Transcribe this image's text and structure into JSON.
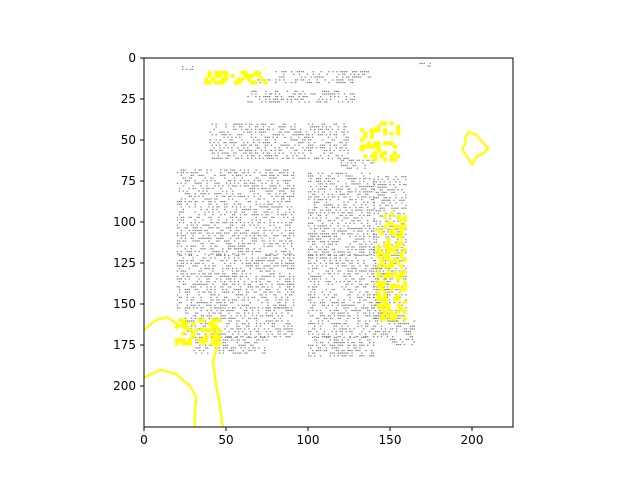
{
  "chart_data": {
    "type": "heatmap",
    "title": "",
    "xlabel": "",
    "ylabel": "",
    "xlim": [
      0,
      225
    ],
    "ylim": [
      225,
      0
    ],
    "y_inverted": true,
    "grid": false,
    "legend": "none",
    "x_ticks": [
      0,
      50,
      100,
      150,
      200
    ],
    "y_ticks": [
      0,
      25,
      50,
      75,
      100,
      125,
      150,
      175,
      200
    ],
    "x_tick_labels": [
      "0",
      "50",
      "100",
      "150",
      "200"
    ],
    "y_tick_labels": [
      "0",
      "25",
      "50",
      "75",
      "100",
      "125",
      "150",
      "175",
      "200"
    ],
    "colors": {
      "text_pixels": "#808080",
      "highlight": "#ffff00",
      "background": "#ffffff"
    },
    "gray_regions": [
      {
        "x": [
          22,
          34
        ],
        "y": [
          5,
          7
        ]
      },
      {
        "x": [
          80,
          140
        ],
        "y": [
          8,
          12
        ]
      },
      {
        "x": [
          68,
          128
        ],
        "y": [
          13,
          16
        ]
      },
      {
        "x": [
          63,
          128
        ],
        "y": [
          20,
          27
        ]
      },
      {
        "x": [
          40,
          125
        ],
        "y": [
          40,
          62
        ]
      },
      {
        "x": [
          120,
          140
        ],
        "y": [
          62,
          67
        ]
      },
      {
        "x": [
          20,
          92
        ],
        "y": [
          68,
          120
        ]
      },
      {
        "x": [
          20,
          92
        ],
        "y": [
          120,
          152
        ]
      },
      {
        "x": [
          25,
          90
        ],
        "y": [
          152,
          170
        ]
      },
      {
        "x": [
          30,
          75
        ],
        "y": [
          170,
          180
        ]
      },
      {
        "x": [
          100,
          140
        ],
        "y": [
          70,
          120
        ]
      },
      {
        "x": [
          100,
          150
        ],
        "y": [
          120,
          170
        ]
      },
      {
        "x": [
          100,
          140
        ],
        "y": [
          170,
          182
        ]
      },
      {
        "x": [
          140,
          160
        ],
        "y": [
          72,
          160
        ]
      },
      {
        "x": [
          150,
          165
        ],
        "y": [
          160,
          175
        ]
      },
      {
        "x": [
          168,
          175
        ],
        "y": [
          3,
          6
        ]
      }
    ],
    "yellow_regions": [
      {
        "x": [
          38,
          76
        ],
        "y": [
          9,
          16
        ]
      },
      {
        "x": [
          133,
          156
        ],
        "y": [
          40,
          63
        ]
      },
      {
        "x": [
          143,
          160
        ],
        "y": [
          95,
          160
        ]
      },
      {
        "x": [
          20,
          47
        ],
        "y": [
          160,
          176
        ]
      }
    ],
    "yellow_contours": [
      [
        [
          196,
          48
        ],
        [
          198,
          45
        ],
        [
          203,
          47
        ],
        [
          206,
          51
        ],
        [
          210,
          55
        ],
        [
          207,
          58
        ],
        [
          203,
          60
        ],
        [
          200,
          65
        ],
        [
          197,
          60
        ],
        [
          194,
          56
        ],
        [
          196,
          52
        ],
        [
          196,
          48
        ]
      ],
      [
        [
          0,
          166
        ],
        [
          7,
          160
        ],
        [
          14,
          158
        ],
        [
          20,
          162
        ],
        [
          25,
          165
        ]
      ],
      [
        [
          40,
          168
        ],
        [
          45,
          173
        ],
        [
          44,
          178
        ],
        [
          42,
          185
        ],
        [
          43,
          192
        ]
      ],
      [
        [
          0,
          195
        ],
        [
          10,
          190
        ],
        [
          20,
          193
        ],
        [
          28,
          200
        ],
        [
          32,
          207
        ],
        [
          31,
          215
        ],
        [
          31,
          225
        ]
      ],
      [
        [
          43,
          192
        ],
        [
          44,
          200
        ],
        [
          46,
          210
        ],
        [
          47,
          218
        ],
        [
          48,
          225
        ]
      ]
    ]
  }
}
